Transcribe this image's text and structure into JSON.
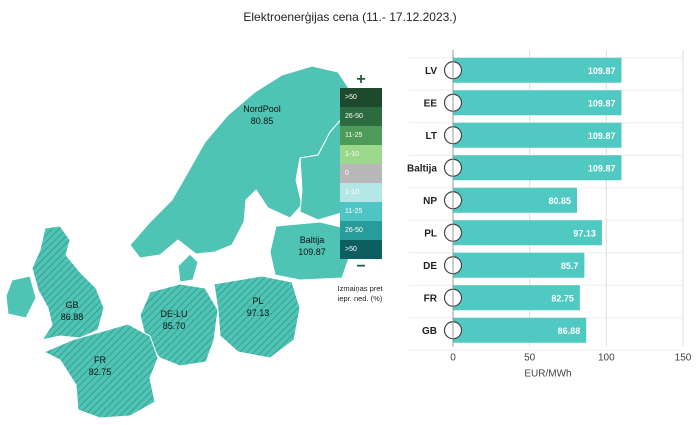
{
  "title": "Elektroenerģijas cena (11.- 17.12.2023.)",
  "map": {
    "regions": [
      {
        "name": "NordPool",
        "value": "80.85"
      },
      {
        "name": "Baltija",
        "value": "109.87"
      },
      {
        "name": "GB",
        "value": "86.88"
      },
      {
        "name": "DE-LU",
        "value": "85.70"
      },
      {
        "name": "PL",
        "value": "97.13"
      },
      {
        "name": "FR",
        "value": "82.75"
      }
    ],
    "fill_color": "#4fc4b4"
  },
  "legend": {
    "plus": "+",
    "minus": "−",
    "items": [
      {
        "label": ">50",
        "color": "#1d4a2c"
      },
      {
        "label": "26-50",
        "color": "#2b6b3f"
      },
      {
        "label": "11-25",
        "color": "#4d9a59"
      },
      {
        "label": "1-10",
        "color": "#9bd88c"
      },
      {
        "label": "0",
        "color": "#b8b8b8"
      },
      {
        "label": "1-10",
        "color": "#b5e6e6"
      },
      {
        "label": "11-25",
        "color": "#4fc4c4"
      },
      {
        "label": "26-50",
        "color": "#2a9b9b"
      },
      {
        "label": ">50",
        "color": "#0d5e60"
      }
    ],
    "caption_line1": "Izmaiņas pret",
    "caption_line2": "iepr. ned. (%)"
  },
  "chart_data": {
    "type": "bar",
    "orientation": "horizontal",
    "categories": [
      "LV",
      "EE",
      "LT",
      "Baltija",
      "NP",
      "PL",
      "DE",
      "FR",
      "GB"
    ],
    "values": [
      109.87,
      109.87,
      109.87,
      109.87,
      80.85,
      97.13,
      85.7,
      82.75,
      86.88
    ],
    "value_labels": [
      "109.87",
      "109.87",
      "109.87",
      "109.87",
      "80.85",
      "97.13",
      "85.7",
      "82.75",
      "86.88"
    ],
    "xlim": [
      0,
      150
    ],
    "xticks": [
      0,
      50,
      100,
      150
    ],
    "xlabel": "EUR/MWh",
    "bar_color": "#4fc9c1",
    "grid": true
  }
}
